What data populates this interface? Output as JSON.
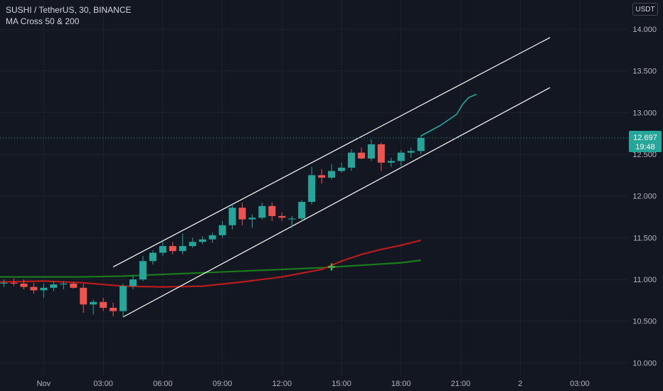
{
  "header": {
    "symbol_title": "SUSHI / TetherUS, 30, BINANCE",
    "indicator_title": "MA Cross 50 & 200",
    "currency_button": "USDT"
  },
  "price_badge": {
    "price": "12.697",
    "countdown": "19:48",
    "color": "#26a69a"
  },
  "colors": {
    "background": "#131722",
    "grid": "#1e222d",
    "up": "#26a69a",
    "down": "#ef5350",
    "ma_fast": "#b71c1c",
    "ma_slow": "#1b7a1b",
    "channel": "#ffffff",
    "projection": "#26a69a",
    "axis_text": "#b2b5be"
  },
  "chart_data": {
    "type": "candlestick",
    "title": "SUSHI / TetherUS, 30, BINANCE",
    "y_axis": {
      "ylim": [
        9.85,
        14.35
      ],
      "ticks": [
        "10.000",
        "10.500",
        "11.000",
        "11.500",
        "12.000",
        "12.500",
        "13.000",
        "13.500",
        "14.000"
      ],
      "tick_values": [
        10.0,
        10.5,
        11.0,
        11.5,
        12.0,
        12.5,
        13.0,
        13.5,
        14.0
      ]
    },
    "x_axis": {
      "ticks": [
        "Nov",
        "03:00",
        "06:00",
        "09:00",
        "12:00",
        "15:00",
        "18:00",
        "21:00",
        "2",
        "03:00"
      ],
      "tick_hours": [
        0,
        3,
        6,
        9,
        12,
        15,
        18,
        21,
        24,
        27
      ],
      "xlim_hours": [
        -2.2,
        29.4
      ]
    },
    "candles": [
      {
        "t": -2.0,
        "o": 10.95,
        "h": 11.0,
        "l": 10.91,
        "c": 10.96
      },
      {
        "t": -1.5,
        "o": 10.96,
        "h": 11.01,
        "l": 10.92,
        "c": 10.95
      },
      {
        "t": -1.0,
        "o": 10.95,
        "h": 11.0,
        "l": 10.88,
        "c": 10.91
      },
      {
        "t": -0.5,
        "o": 10.91,
        "h": 10.96,
        "l": 10.83,
        "c": 10.87
      },
      {
        "t": 0.0,
        "o": 10.87,
        "h": 10.95,
        "l": 10.78,
        "c": 10.9
      },
      {
        "t": 0.5,
        "o": 10.9,
        "h": 10.98,
        "l": 10.86,
        "c": 10.94
      },
      {
        "t": 1.0,
        "o": 10.94,
        "h": 10.98,
        "l": 10.88,
        "c": 10.95
      },
      {
        "t": 1.5,
        "o": 10.95,
        "h": 10.97,
        "l": 10.89,
        "c": 10.9
      },
      {
        "t": 2.0,
        "o": 10.9,
        "h": 10.95,
        "l": 10.6,
        "c": 10.7
      },
      {
        "t": 2.5,
        "o": 10.7,
        "h": 10.76,
        "l": 10.58,
        "c": 10.73
      },
      {
        "t": 3.0,
        "o": 10.73,
        "h": 10.78,
        "l": 10.62,
        "c": 10.66
      },
      {
        "t": 3.5,
        "o": 10.66,
        "h": 10.72,
        "l": 10.56,
        "c": 10.62
      },
      {
        "t": 4.0,
        "o": 10.62,
        "h": 10.95,
        "l": 10.55,
        "c": 10.92
      },
      {
        "t": 4.5,
        "o": 10.92,
        "h": 11.05,
        "l": 10.88,
        "c": 11.0
      },
      {
        "t": 5.0,
        "o": 11.0,
        "h": 11.28,
        "l": 10.98,
        "c": 11.22
      },
      {
        "t": 5.5,
        "o": 11.22,
        "h": 11.35,
        "l": 11.18,
        "c": 11.32
      },
      {
        "t": 6.0,
        "o": 11.32,
        "h": 11.46,
        "l": 11.28,
        "c": 11.4
      },
      {
        "t": 6.5,
        "o": 11.4,
        "h": 11.45,
        "l": 11.3,
        "c": 11.34
      },
      {
        "t": 7.0,
        "o": 11.34,
        "h": 11.55,
        "l": 11.3,
        "c": 11.4
      },
      {
        "t": 7.5,
        "o": 11.4,
        "h": 11.5,
        "l": 11.38,
        "c": 11.45
      },
      {
        "t": 8.0,
        "o": 11.45,
        "h": 11.52,
        "l": 11.42,
        "c": 11.48
      },
      {
        "t": 8.5,
        "o": 11.48,
        "h": 11.56,
        "l": 11.44,
        "c": 11.53
      },
      {
        "t": 9.0,
        "o": 11.53,
        "h": 11.7,
        "l": 11.5,
        "c": 11.65
      },
      {
        "t": 9.5,
        "o": 11.65,
        "h": 11.9,
        "l": 11.6,
        "c": 11.86
      },
      {
        "t": 10.0,
        "o": 11.86,
        "h": 11.92,
        "l": 11.65,
        "c": 11.72
      },
      {
        "t": 10.5,
        "o": 11.72,
        "h": 11.78,
        "l": 11.62,
        "c": 11.74
      },
      {
        "t": 11.0,
        "o": 11.74,
        "h": 11.92,
        "l": 11.72,
        "c": 11.88
      },
      {
        "t": 11.5,
        "o": 11.88,
        "h": 11.92,
        "l": 11.7,
        "c": 11.76
      },
      {
        "t": 12.0,
        "o": 11.76,
        "h": 11.8,
        "l": 11.7,
        "c": 11.74
      },
      {
        "t": 12.5,
        "o": 11.72,
        "h": 11.76,
        "l": 11.62,
        "c": 11.73
      },
      {
        "t": 13.0,
        "o": 11.73,
        "h": 11.95,
        "l": 11.7,
        "c": 11.93
      },
      {
        "t": 13.5,
        "o": 11.93,
        "h": 12.35,
        "l": 11.9,
        "c": 12.25
      },
      {
        "t": 14.0,
        "o": 12.25,
        "h": 12.32,
        "l": 12.15,
        "c": 12.22
      },
      {
        "t": 14.5,
        "o": 12.22,
        "h": 12.38,
        "l": 12.2,
        "c": 12.3
      },
      {
        "t": 15.0,
        "o": 12.3,
        "h": 12.4,
        "l": 12.28,
        "c": 12.34
      },
      {
        "t": 15.5,
        "o": 12.34,
        "h": 12.56,
        "l": 12.3,
        "c": 12.52
      },
      {
        "t": 16.0,
        "o": 12.52,
        "h": 12.58,
        "l": 12.44,
        "c": 12.45
      },
      {
        "t": 16.5,
        "o": 12.45,
        "h": 12.68,
        "l": 12.42,
        "c": 12.62
      },
      {
        "t": 17.0,
        "o": 12.62,
        "h": 12.64,
        "l": 12.3,
        "c": 12.4
      },
      {
        "t": 17.5,
        "o": 12.4,
        "h": 12.46,
        "l": 12.35,
        "c": 12.42
      },
      {
        "t": 18.0,
        "o": 12.42,
        "h": 12.55,
        "l": 12.36,
        "c": 12.52
      },
      {
        "t": 18.5,
        "o": 12.52,
        "h": 12.58,
        "l": 12.46,
        "c": 12.54
      },
      {
        "t": 19.0,
        "o": 12.54,
        "h": 12.72,
        "l": 12.5,
        "c": 12.697
      }
    ],
    "ma_fast": {
      "points": [
        [
          -2.2,
          10.97
        ],
        [
          0,
          10.98
        ],
        [
          2,
          10.96
        ],
        [
          4,
          10.92
        ],
        [
          6,
          10.91
        ],
        [
          8,
          10.92
        ],
        [
          10,
          10.97
        ],
        [
          12,
          11.03
        ],
        [
          14,
          11.12
        ],
        [
          15,
          11.22
        ],
        [
          16,
          11.3
        ],
        [
          17,
          11.36
        ],
        [
          18,
          11.41
        ],
        [
          19,
          11.47
        ]
      ]
    },
    "ma_slow": {
      "points": [
        [
          -2.2,
          11.03
        ],
        [
          2,
          11.03
        ],
        [
          4,
          11.04
        ],
        [
          6,
          11.06
        ],
        [
          8,
          11.08
        ],
        [
          10,
          11.1
        ],
        [
          12,
          11.12
        ],
        [
          14,
          11.14
        ],
        [
          16,
          11.17
        ],
        [
          18,
          11.2
        ],
        [
          19,
          11.23
        ]
      ]
    },
    "cross_marker": {
      "t": 14.5,
      "value": 11.15
    },
    "channel_lines": [
      {
        "from": [
          3.5,
          11.15
        ],
        "to": [
          25.5,
          13.9
        ]
      },
      {
        "from": [
          4.0,
          10.55
        ],
        "to": [
          25.5,
          13.3
        ]
      }
    ],
    "projection_path": [
      [
        19.0,
        12.72
      ],
      [
        20.0,
        12.85
      ],
      [
        20.8,
        12.98
      ],
      [
        21.1,
        13.1
      ],
      [
        21.4,
        13.18
      ],
      [
        21.8,
        13.22
      ]
    ],
    "last_price_line": 12.697
  }
}
